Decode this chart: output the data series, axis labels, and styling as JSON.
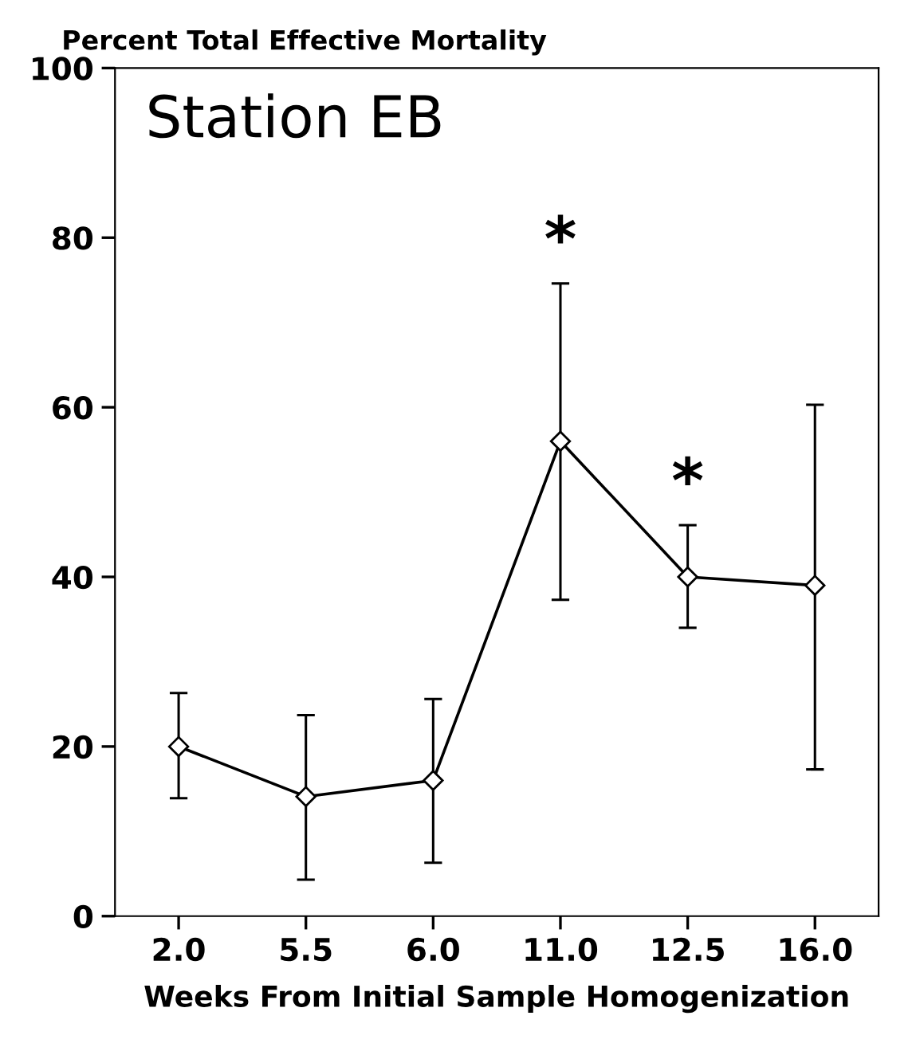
{
  "chart_data": {
    "type": "line",
    "title": "Station EB",
    "ylabel": "Percent Total Effective Mortality",
    "xlabel": "Weeks From Initial Sample Homogenization",
    "categories": [
      "2.0",
      "5.5",
      "6.0",
      "11.0",
      "12.5",
      "16.0"
    ],
    "series": [
      {
        "color": "#000000",
        "values": [
          20,
          14.1,
          16,
          56,
          40,
          39
        ],
        "errors": [
          [
            13.9,
            26.3
          ],
          [
            4.3,
            23.7
          ],
          [
            6.3,
            25.6
          ],
          [
            37.3,
            74.6
          ],
          [
            34,
            46.1
          ],
          [
            17.3,
            60.3
          ]
        ]
      }
    ],
    "ylim": [
      0,
      100
    ],
    "yticks": [
      0,
      20,
      40,
      60,
      80,
      100
    ],
    "annotations": [
      {
        "text": "*",
        "x": "11.0",
        "y": 74.6
      },
      {
        "text": "*",
        "x": "12.5",
        "y": 46.1
      }
    ],
    "marker": "diamond",
    "line_style": "solid",
    "grid": false,
    "legend": false
  }
}
